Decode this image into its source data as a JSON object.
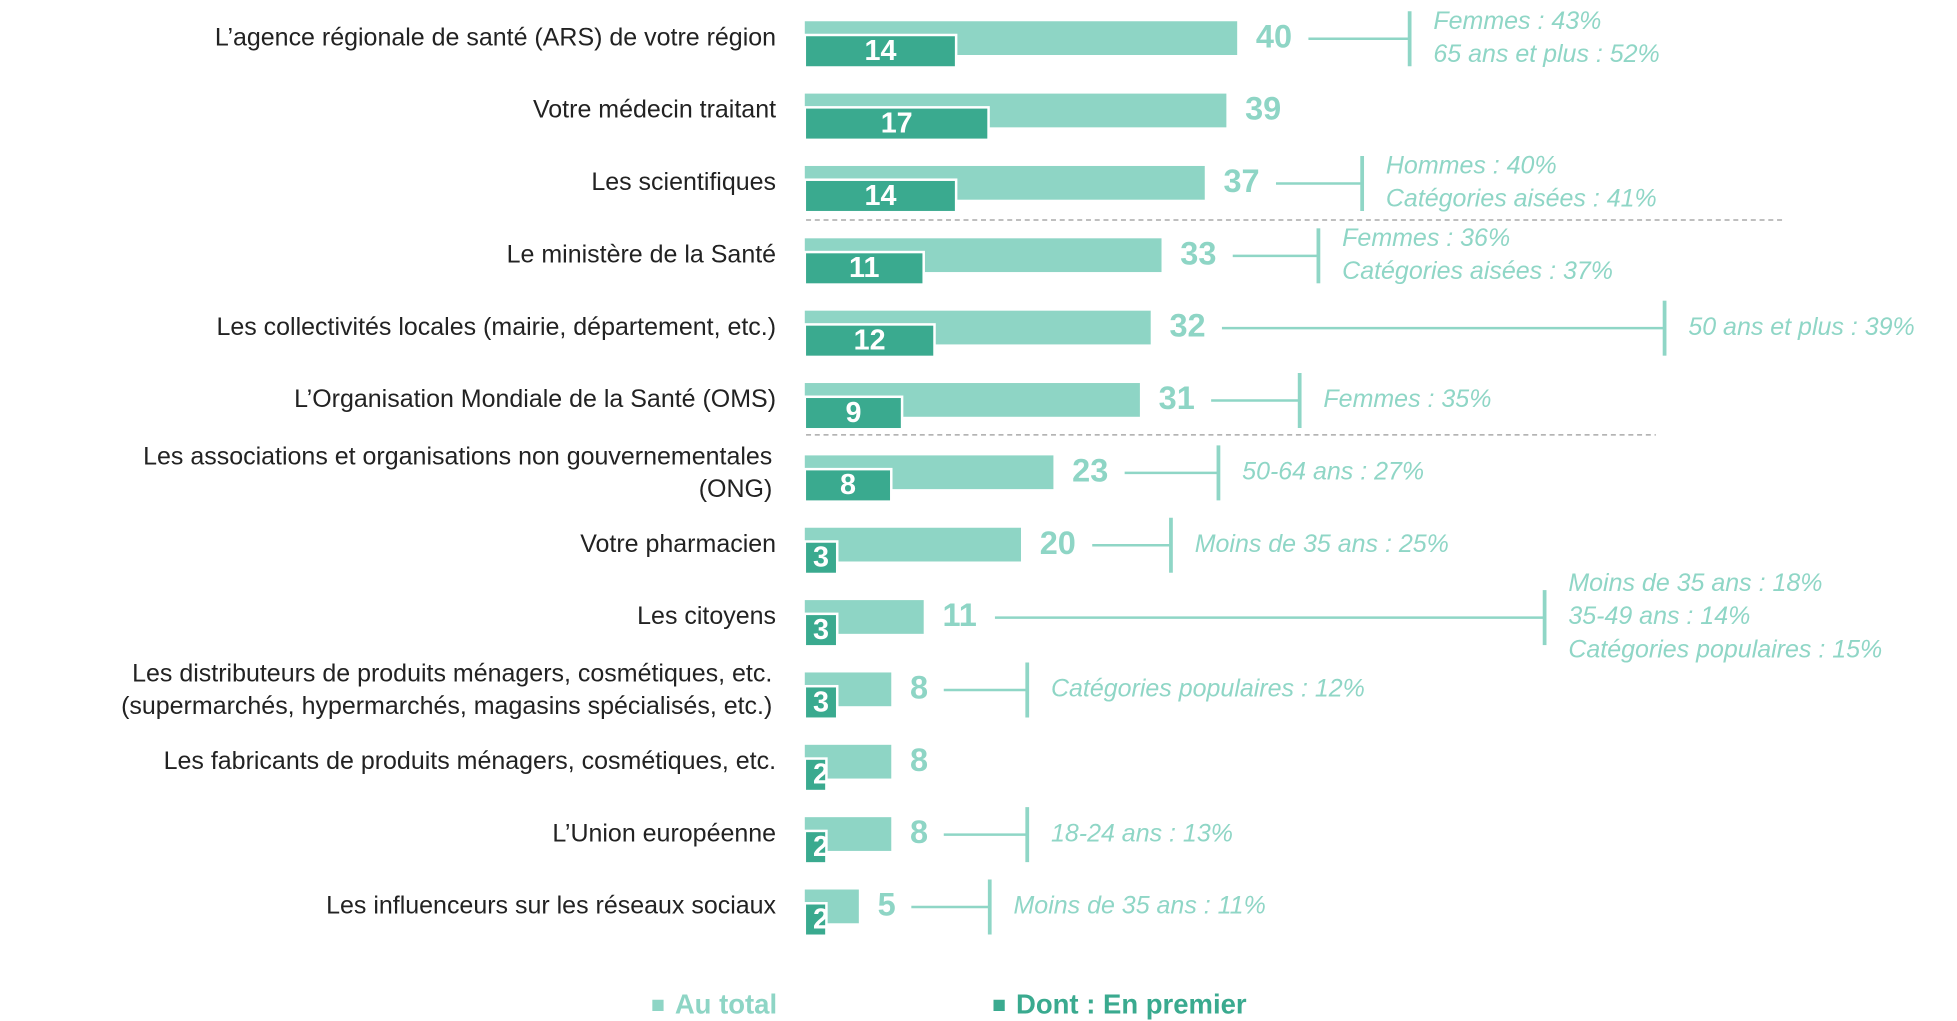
{
  "chart_data": {
    "type": "bar",
    "orientation": "horizontal",
    "categories": [
      "L’agence régionale de santé (ARS) de votre région",
      "Votre médecin traitant",
      "Les scientifiques",
      "Le ministère de la Santé",
      "Les collectivités locales (mairie, département, etc.)",
      "L’Organisation Mondiale de la Santé (OMS)",
      [
        "Les associations et organisations non gouvernementales",
        "(ONG)"
      ],
      "Votre pharmacien",
      "Les citoyens",
      [
        "Les distributeurs de produits ménagers, cosmétiques, etc.",
        "(supermarchés, hypermarchés, magasins spécialisés, etc.)"
      ],
      "Les fabricants de produits ménagers, cosmétiques, etc.",
      "L’Union européenne",
      "Les influenceurs sur les réseaux sociaux"
    ],
    "series": [
      {
        "name": "Au total",
        "color": "#8ed5c5",
        "values": [
          40,
          39,
          37,
          33,
          32,
          31,
          23,
          20,
          11,
          8,
          8,
          8,
          5
        ]
      },
      {
        "name": "Dont : En premier",
        "color": "#3aaa8f",
        "values": [
          14,
          17,
          14,
          11,
          12,
          9,
          8,
          3,
          3,
          3,
          2,
          2,
          2
        ]
      }
    ],
    "annotations": [
      [
        "Femmes : 43%",
        "65 ans et plus : 52%"
      ],
      null,
      [
        "Hommes : 40%",
        "Catégories aisées : 41%"
      ],
      [
        "Femmes : 36%",
        "Catégories aisées : 37%"
      ],
      [
        "50 ans et plus : 39%"
      ],
      [
        "Femmes : 35%"
      ],
      [
        "50-64 ans : 27%"
      ],
      [
        "Moins de 35 ans : 25%"
      ],
      [
        "Moins de 35 ans : 18%",
        "35-49 ans : 14%",
        "Catégories populaires : 15%"
      ],
      [
        "Catégories populaires : 12%"
      ],
      null,
      [
        "18-24 ans : 13%"
      ],
      [
        "Moins de 35 ans : 11%"
      ]
    ],
    "annotation_color": "#8fd6c6",
    "legend": "bottom"
  }
}
